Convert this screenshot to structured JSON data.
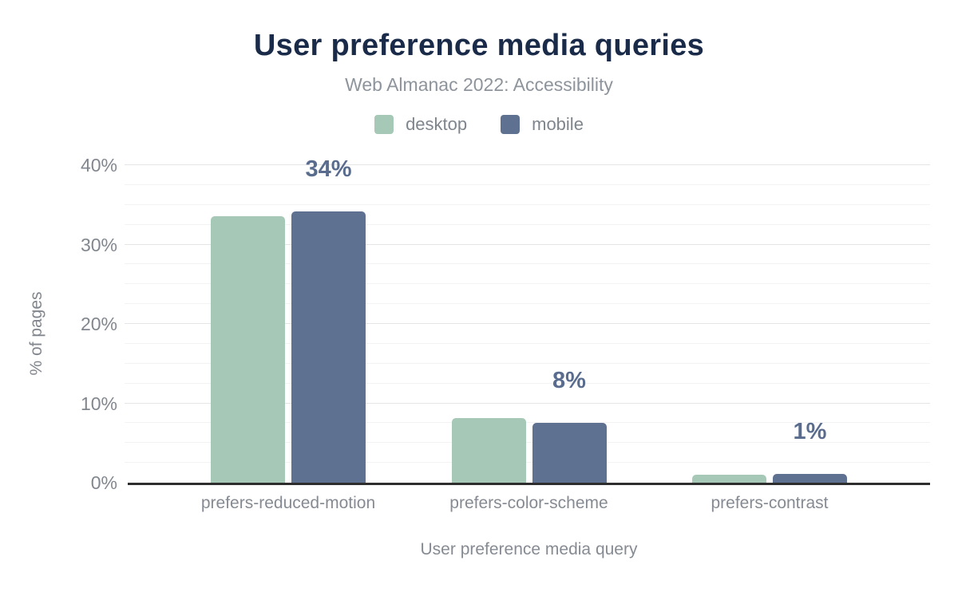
{
  "chart_data": {
    "type": "bar",
    "title": "User preference media queries",
    "subtitle": "Web Almanac 2022: Accessibility",
    "categories": [
      "prefers-reduced-motion",
      "prefers-color-scheme",
      "prefers-contrast"
    ],
    "series": [
      {
        "name": "desktop",
        "color": "#a5c8b7",
        "values": [
          33.6,
          8.1,
          1.0
        ]
      },
      {
        "name": "mobile",
        "color": "#5f7190",
        "values": [
          34.2,
          7.5,
          1.1
        ]
      }
    ],
    "value_labels": [
      "34%",
      "8%",
      "1%"
    ],
    "value_labels_above_series": "mobile",
    "xlabel": "User preference media query",
    "ylabel": "% of pages",
    "ylim": [
      0,
      40
    ],
    "yticks": [
      "0%",
      "10%",
      "20%",
      "30%",
      "40%"
    ],
    "ytick_step": 10,
    "minor_grid_step": 2.5,
    "grid": true,
    "legend_position": "top",
    "group_center_fracs": [
      0.2,
      0.5,
      0.8
    ],
    "colors": {
      "title": "#1a2b4a",
      "subtitle": "#8e949c",
      "axis_text": "#82878f",
      "value_label": "#5a6c8e",
      "axis_line": "#2e2e2e",
      "grid_major": "#e5e5e5",
      "grid_minor": "#f3f3f3",
      "background": "#ffffff"
    }
  }
}
